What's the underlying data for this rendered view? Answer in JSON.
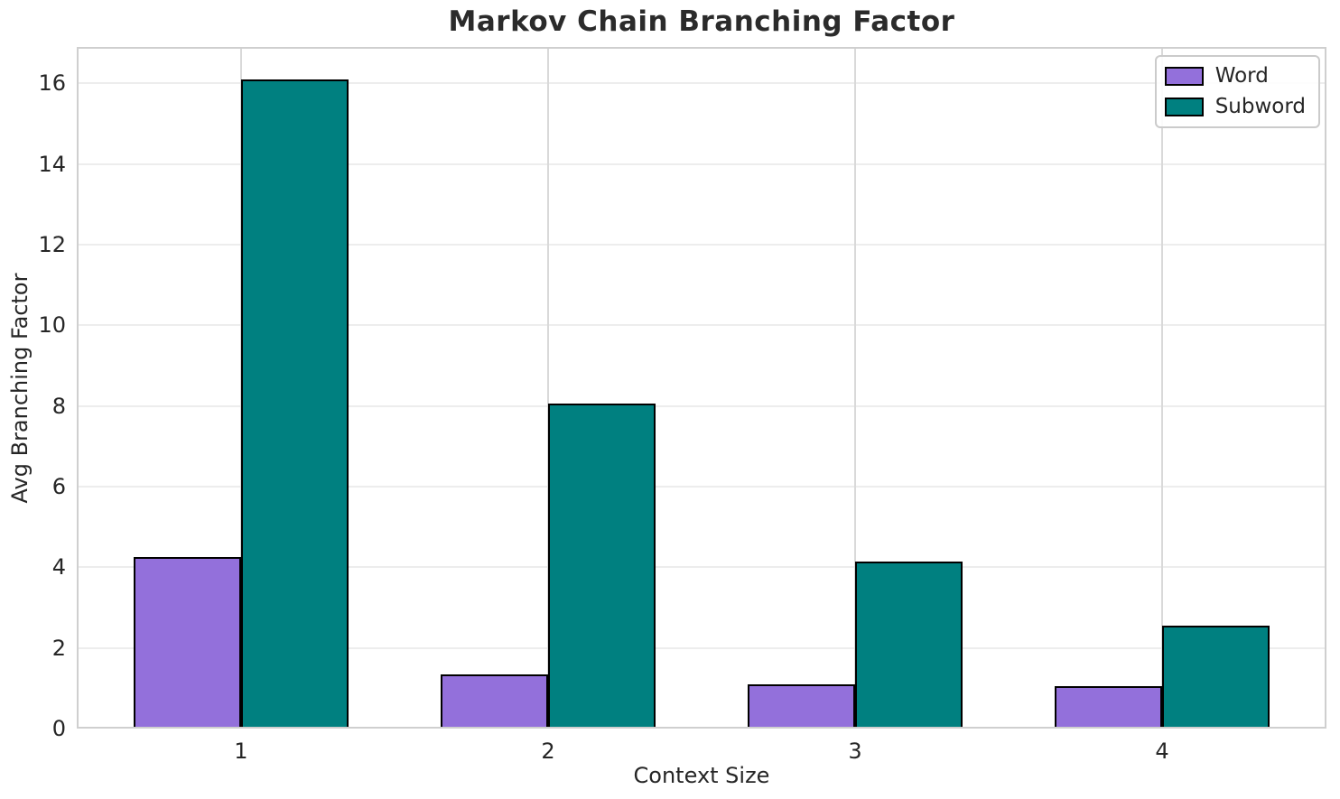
{
  "chart_data": {
    "type": "bar",
    "title": "Markov Chain Branching Factor",
    "xlabel": "Context Size",
    "ylabel": "Avg Branching Factor",
    "categories": [
      "1",
      "2",
      "3",
      "4"
    ],
    "x_positions": [
      1,
      2,
      3,
      4
    ],
    "series": [
      {
        "name": "Word",
        "color": "#9370DB",
        "values": [
          4.25,
          1.35,
          1.1,
          1.05
        ]
      },
      {
        "name": "Subword",
        "color": "#008080",
        "values": [
          16.1,
          8.05,
          4.15,
          2.55
        ]
      }
    ],
    "bar_width": 0.35,
    "bar_edge_color": "#000000",
    "xlim": [
      0.465,
      4.535
    ],
    "ylim": [
      0,
      16.9
    ],
    "yticks": [
      0,
      2,
      4,
      6,
      8,
      10,
      12,
      14,
      16
    ],
    "grid": true,
    "legend_position": "upper right"
  },
  "style": {
    "background": "#ffffff",
    "title_color": "#2b2b2b",
    "text_color": "#262626",
    "spine_color": "#cfcfcf",
    "grid_color_horizontal": "#ededed",
    "grid_color_vertical": "#d9d9d9",
    "legend_border_color": "#cbcbcb"
  }
}
